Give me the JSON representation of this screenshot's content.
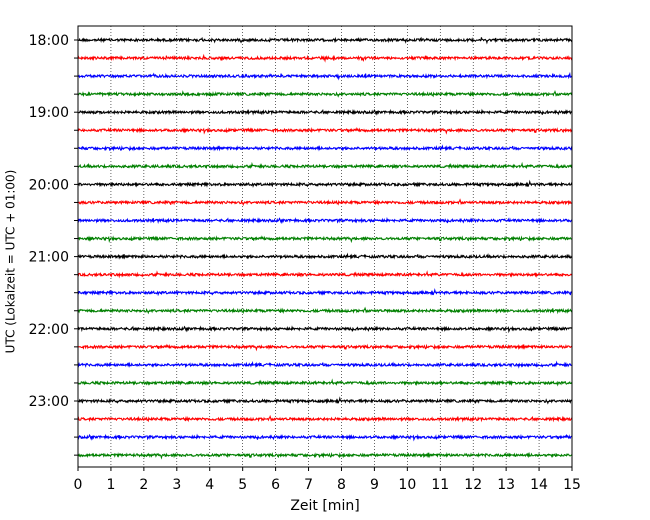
{
  "chart_data": {
    "type": "line",
    "title": "",
    "xlabel": "Zeit  [min]",
    "ylabel": "UTC (Lokalzeit = UTC + 01:00)",
    "xlim": [
      0,
      15
    ],
    "x_ticks": [
      "0",
      "1",
      "2",
      "3",
      "4",
      "5",
      "6",
      "7",
      "8",
      "9",
      "10",
      "11",
      "12",
      "13",
      "14",
      "15"
    ],
    "y_ticks": [
      "18:00",
      "19:00",
      "20:00",
      "21:00",
      "22:00",
      "23:00"
    ],
    "vertical_grid": "dotted",
    "trace_interval_minutes": 15,
    "trace_colors": [
      "#000000",
      "#ff0000",
      "#0000ff",
      "#008000"
    ],
    "traces": [
      {
        "start": "18:00",
        "color": "#000000"
      },
      {
        "start": "18:15",
        "color": "#ff0000"
      },
      {
        "start": "18:30",
        "color": "#0000ff"
      },
      {
        "start": "18:45",
        "color": "#008000"
      },
      {
        "start": "19:00",
        "color": "#000000"
      },
      {
        "start": "19:15",
        "color": "#ff0000"
      },
      {
        "start": "19:30",
        "color": "#0000ff"
      },
      {
        "start": "19:45",
        "color": "#008000"
      },
      {
        "start": "20:00",
        "color": "#000000"
      },
      {
        "start": "20:15",
        "color": "#ff0000"
      },
      {
        "start": "20:30",
        "color": "#0000ff"
      },
      {
        "start": "20:45",
        "color": "#008000"
      },
      {
        "start": "21:00",
        "color": "#000000"
      },
      {
        "start": "21:15",
        "color": "#ff0000"
      },
      {
        "start": "21:30",
        "color": "#0000ff"
      },
      {
        "start": "21:45",
        "color": "#008000"
      },
      {
        "start": "22:00",
        "color": "#000000"
      },
      {
        "start": "22:15",
        "color": "#ff0000"
      },
      {
        "start": "22:30",
        "color": "#0000ff"
      },
      {
        "start": "22:45",
        "color": "#008000"
      },
      {
        "start": "23:00",
        "color": "#000000"
      },
      {
        "start": "23:15",
        "color": "#ff0000"
      },
      {
        "start": "23:30",
        "color": "#0000ff"
      },
      {
        "start": "23:45",
        "color": "#008000"
      }
    ]
  }
}
